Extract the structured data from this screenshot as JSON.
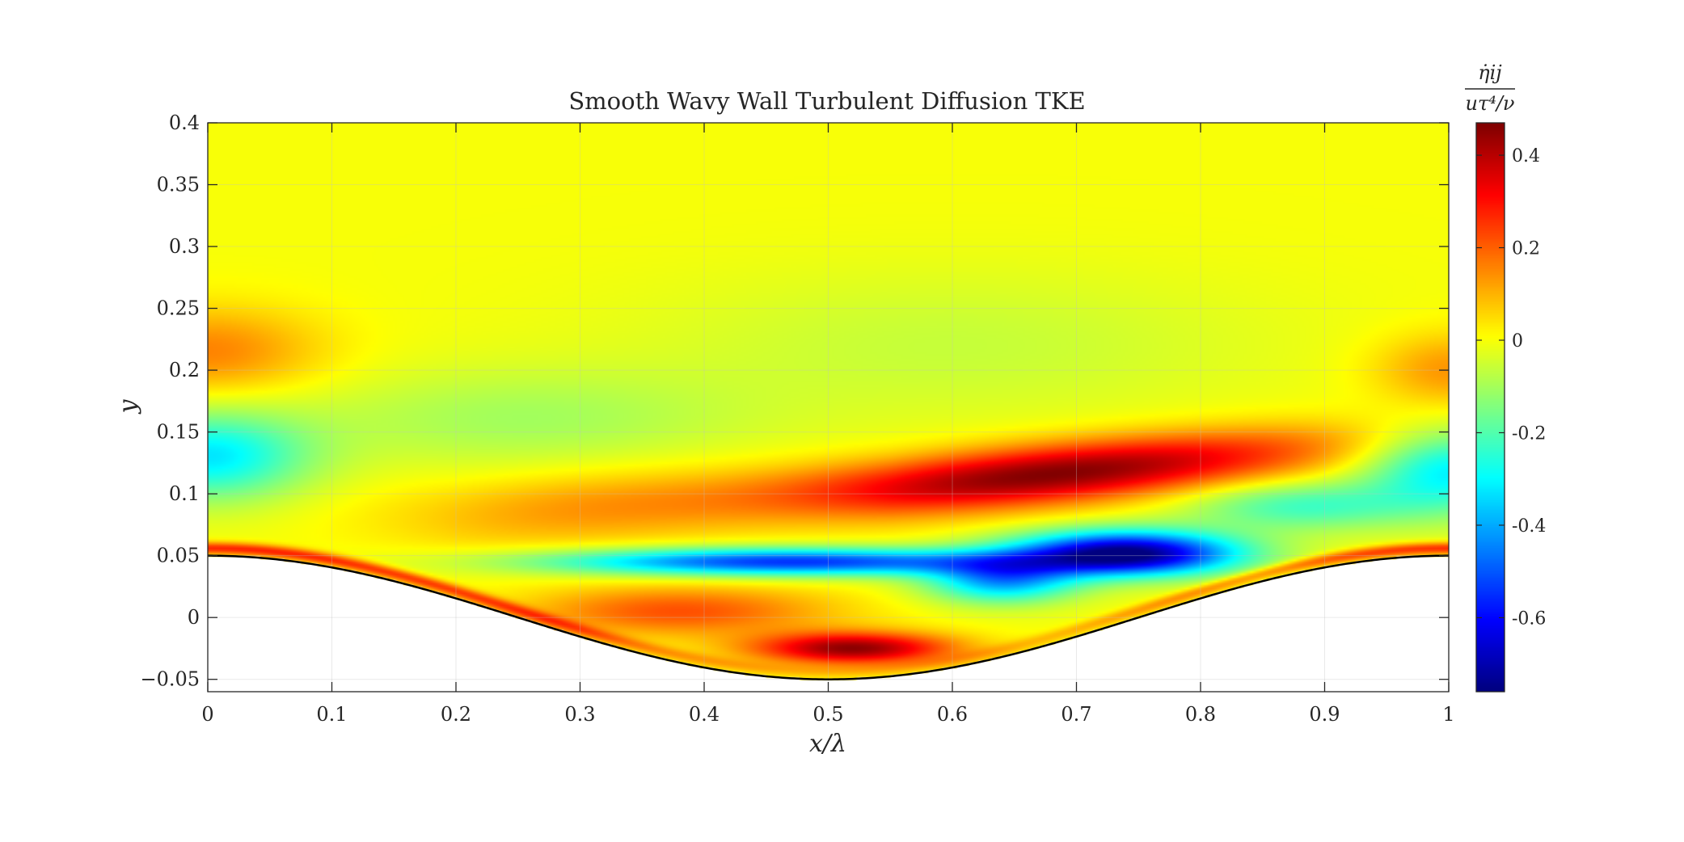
{
  "chart_data": {
    "type": "heatmap",
    "title": "Smooth Wavy Wall Turbulent Diffusion TKE",
    "xlabel": "x/λ",
    "ylabel": "y",
    "xlim": [
      0,
      1
    ],
    "ylim": [
      -0.06,
      0.4
    ],
    "x_ticks": [
      0,
      0.1,
      0.2,
      0.3,
      0.4,
      0.5,
      0.6,
      0.7,
      0.8,
      0.9,
      1
    ],
    "x_tick_labels": [
      "0",
      "0.1",
      "0.2",
      "0.3",
      "0.4",
      "0.5",
      "0.6",
      "0.7",
      "0.8",
      "0.9",
      "1"
    ],
    "y_ticks": [
      -0.05,
      0,
      0.05,
      0.1,
      0.15,
      0.2,
      0.25,
      0.3,
      0.35,
      0.4
    ],
    "y_tick_labels": [
      "−0.05",
      "0",
      "0.05",
      "0.1",
      "0.15",
      "0.2",
      "0.25",
      "0.3",
      "0.35",
      "0.4"
    ],
    "grid": true,
    "colormap": "jet",
    "colorbar": {
      "label_numerator": "η̇ij",
      "label_denominator": "uτ⁴/ν",
      "clim": [
        -0.76,
        0.47
      ],
      "ticks": [
        0.4,
        0.2,
        0,
        -0.2,
        -0.4,
        -0.6
      ],
      "tick_labels": [
        "0.4",
        "0.2",
        "0",
        "-0.2",
        "-0.4",
        "-0.6"
      ]
    },
    "wall": {
      "shape": "cosine",
      "amplitude": 0.05,
      "wavelength": 1,
      "equation": "y = 0.05·cos(2πx/λ)"
    },
    "field_features": [
      {
        "region": "near-wall shear layer upstream of crest",
        "x_range": [
          0,
          0.55
        ],
        "y_range": [
          0.04,
          0.06
        ],
        "value": 0.2
      },
      {
        "region": "positive lobe above trough",
        "x_center": 0.52,
        "y_center": -0.025,
        "value": 0.45
      },
      {
        "region": "negative band",
        "x_center": 0.5,
        "y_center": 0.045,
        "value": -0.55
      },
      {
        "region": "strong negative lobe",
        "x_center": 0.74,
        "y_center": 0.05,
        "value": -0.75
      },
      {
        "region": "strong positive inclined band",
        "x_center": 0.68,
        "y_center": 0.115,
        "value": 0.47
      },
      {
        "region": "moderate negative layer",
        "x_center": 0.05,
        "y_center": 0.13,
        "value": -0.3
      },
      {
        "region": "weak positive layer",
        "x_center": 0.05,
        "y_center": 0.22,
        "value": 0.15
      },
      {
        "region": "far field",
        "y_range": [
          0.28,
          0.4
        ],
        "value": 0.0
      }
    ]
  }
}
